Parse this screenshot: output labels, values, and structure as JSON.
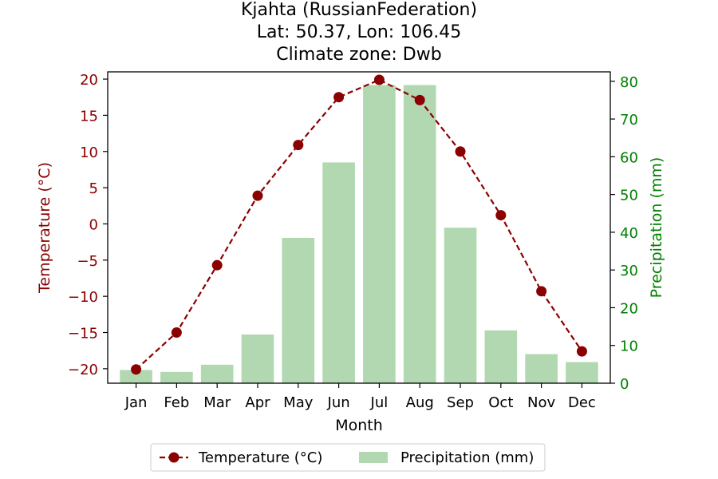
{
  "chart_data": {
    "type": "bar+line",
    "title_lines": [
      "Kjahta (RussianFederation)",
      "Lat: 50.37, Lon: 106.45",
      "Climate zone: Dwb"
    ],
    "xlabel": "Month",
    "ylabel_left": "Temperature (°C)",
    "ylabel_right": "Precipitation (mm)",
    "categories": [
      "Jan",
      "Feb",
      "Mar",
      "Apr",
      "May",
      "Jun",
      "Jul",
      "Aug",
      "Sep",
      "Oct",
      "Nov",
      "Dec"
    ],
    "ylim_left": [
      -22,
      21
    ],
    "ylim_right": [
      0,
      82.5
    ],
    "yticks_left": [
      -20,
      -15,
      -10,
      -5,
      0,
      5,
      10,
      15,
      20
    ],
    "yticks_right": [
      0,
      10,
      20,
      30,
      40,
      50,
      60,
      70,
      80
    ],
    "series": [
      {
        "name": "Temperature (°C)",
        "type": "line",
        "axis": "left",
        "color": "#8b0000",
        "values": [
          -20.1,
          -15.0,
          -5.7,
          3.9,
          10.9,
          17.5,
          19.9,
          17.1,
          10.0,
          1.2,
          -9.3,
          -17.6
        ]
      },
      {
        "name": "Precipitation (mm)",
        "type": "bar",
        "axis": "right",
        "color": "#b2d8b2",
        "values": [
          3.5,
          3.0,
          4.9,
          12.9,
          38.5,
          58.5,
          79.0,
          79.0,
          41.2,
          14.0,
          7.7,
          5.6
        ]
      }
    ],
    "legend": {
      "placement": "bottom-center",
      "columns": 2
    },
    "colors": {
      "left_axis": "#8b0000",
      "right_axis": "#008000"
    },
    "grid": false
  }
}
